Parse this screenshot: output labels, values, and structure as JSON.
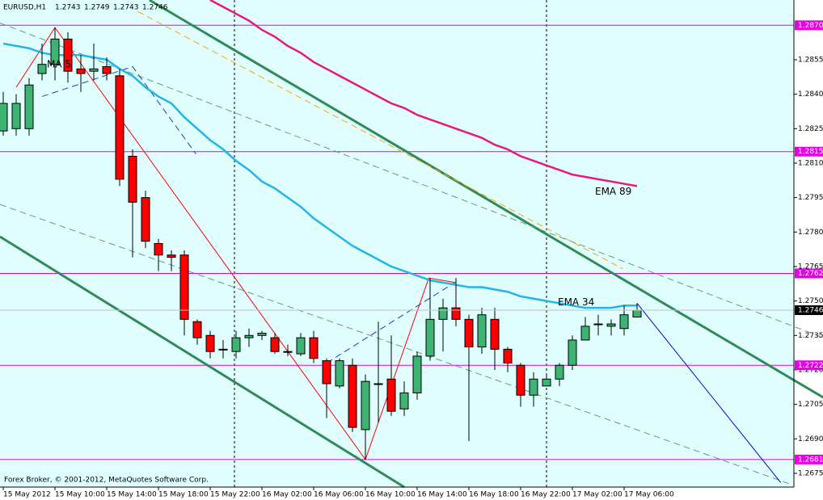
{
  "chart_data": {
    "type": "candlestick",
    "title": "EURUSD,H1",
    "categories": [
      "15 May 2012",
      null,
      null,
      null,
      "15 May 10:00",
      null,
      null,
      null,
      "15 May 14:00",
      null,
      null,
      null,
      "15 May 18:00",
      null,
      null,
      null,
      "15 May 22:00",
      null,
      null,
      null,
      "16 May 02:00",
      null,
      null,
      null,
      "16 May 06:00",
      null,
      null,
      null,
      "16 May 10:00",
      null,
      null,
      null,
      "16 May 14:00",
      null,
      null,
      null,
      "16 May 18:00",
      null,
      null,
      null,
      "16 May 22:00",
      null,
      null,
      null,
      "17 May 02:00",
      null,
      null,
      null,
      "17 May 06:00",
      null
    ],
    "open": [
      1.2824,
      1.2825,
      1.2825,
      1.2849,
      1.2853,
      1.2864,
      1.2851,
      1.285,
      1.2852,
      1.2848,
      1.2813,
      1.2795,
      1.2775,
      1.277,
      1.277,
      1.2741,
      1.2735,
      1.2729,
      1.2728,
      1.2734,
      1.2735,
      1.2734,
      1.2728,
      1.2727,
      1.2734,
      1.2724,
      1.2713,
      1.2722,
      1.2694,
      1.2714,
      1.2716,
      1.2703,
      1.271,
      1.2726,
      1.2742,
      1.2747,
      1.2742,
      1.273,
      1.2742,
      1.2729,
      1.2722,
      1.2709,
      1.2713,
      1.2716,
      1.2722,
      1.2733,
      1.274,
      1.2739,
      1.2738,
      1.2743
    ],
    "high": [
      1.2841,
      1.284,
      1.2847,
      1.2862,
      1.2869,
      1.2867,
      1.2857,
      1.2862,
      1.2856,
      1.2851,
      1.2816,
      1.2798,
      1.2777,
      1.2772,
      1.2772,
      1.2742,
      1.2737,
      1.2733,
      1.2737,
      1.2738,
      1.2737,
      1.2736,
      1.2731,
      1.2736,
      1.2737,
      1.2725,
      1.2725,
      1.2725,
      1.2718,
      1.2741,
      1.2735,
      1.2715,
      1.2728,
      1.276,
      1.2751,
      1.276,
      1.2744,
      1.2747,
      1.2747,
      1.273,
      1.2723,
      1.2719,
      1.2718,
      1.2723,
      1.2735,
      1.2743,
      1.2744,
      1.2742,
      1.2748,
      1.2749
    ],
    "low": [
      1.2822,
      1.2822,
      1.2822,
      1.2846,
      1.2846,
      1.2845,
      1.2841,
      1.2846,
      1.2846,
      1.28,
      1.2769,
      1.2773,
      1.2763,
      1.2763,
      1.2735,
      1.2731,
      1.2725,
      1.2725,
      1.2725,
      1.273,
      1.2733,
      1.2727,
      1.2726,
      1.2726,
      1.2723,
      1.2699,
      1.2712,
      1.2693,
      1.2681,
      1.2697,
      1.27,
      1.27,
      1.2707,
      1.2724,
      1.2728,
      1.2739,
      1.2689,
      1.2727,
      1.272,
      1.2719,
      1.2704,
      1.2704,
      1.2713,
      1.2713,
      1.272,
      1.2733,
      1.2735,
      1.2735,
      1.2735,
      1.2743
    ],
    "close": [
      1.2836,
      1.2836,
      1.2844,
      1.2853,
      1.2864,
      1.285,
      1.2849,
      1.2851,
      1.2849,
      1.2803,
      1.2793,
      1.2776,
      1.277,
      1.2769,
      1.2742,
      1.2734,
      1.2728,
      1.2729,
      1.2734,
      1.2735,
      1.2736,
      1.2728,
      1.2728,
      1.2734,
      1.2725,
      1.2714,
      1.2724,
      1.2695,
      1.2715,
      1.2714,
      1.2702,
      1.271,
      1.2726,
      1.2742,
      1.2747,
      1.2742,
      1.273,
      1.2744,
      1.2729,
      1.2723,
      1.2709,
      1.2716,
      1.2716,
      1.2722,
      1.2733,
      1.2739,
      1.274,
      1.274,
      1.2744,
      1.2746
    ],
    "up_color": "#3cb371",
    "down_color": "#ff0000",
    "series": [
      {
        "name": "EMA 34",
        "color": "#22b5e8",
        "values": [
          1.2862,
          1.2861,
          1.286,
          1.2858,
          1.2857,
          1.2857,
          1.2857,
          1.2856,
          1.2855,
          1.2851,
          1.2848,
          1.2843,
          1.2839,
          1.2836,
          1.283,
          1.2825,
          1.282,
          1.2816,
          1.2811,
          1.2807,
          1.2802,
          1.2799,
          1.2795,
          1.2791,
          1.2786,
          1.2782,
          1.2778,
          1.2774,
          1.2771,
          1.2768,
          1.2765,
          1.2763,
          1.2761,
          1.2759,
          1.2758,
          1.2757,
          1.2756,
          1.2756,
          1.2755,
          1.2754,
          1.2752,
          1.2751,
          1.275,
          1.2749,
          1.2748,
          1.2747,
          1.2747,
          1.2747,
          1.2748,
          1.2748
        ]
      },
      {
        "name": "EMA 89",
        "color": "#e8197d",
        "values": [
          null,
          null,
          null,
          null,
          null,
          null,
          null,
          null,
          null,
          null,
          null,
          null,
          null,
          null,
          null,
          null,
          1.2881,
          1.2878,
          1.2875,
          1.2872,
          1.2868,
          1.2865,
          1.2861,
          1.2858,
          1.2854,
          1.2851,
          1.2848,
          1.2845,
          1.2842,
          1.2839,
          1.2836,
          1.2834,
          1.2831,
          1.2829,
          1.2827,
          1.2825,
          1.2823,
          1.2821,
          1.2818,
          1.2816,
          1.2813,
          1.2811,
          1.2809,
          1.2807,
          1.2805,
          1.2804,
          1.2803,
          1.2802,
          1.2801,
          1.28
        ]
      }
    ],
    "lines": [
      {
        "color": "#2e8b57",
        "width": 3,
        "dash": false,
        "points": [
          [
            11.3,
            1.2881
          ],
          [
            63.4,
            1.2708
          ]
        ]
      },
      {
        "color": "#2e8b57",
        "width": 3,
        "dash": false,
        "points": [
          [
            -0.25,
            1.2778
          ],
          [
            31,
            1.2669
          ]
        ]
      },
      {
        "color": "#5f9f7f",
        "width": 1,
        "dash": true,
        "points": [
          [
            -0.25,
            1.2871
          ],
          [
            63.4,
            1.2734
          ]
        ]
      },
      {
        "color": "#5f9f7f",
        "width": 1,
        "dash": true,
        "points": [
          [
            -0.25,
            1.2792
          ],
          [
            61,
            1.267
          ]
        ]
      },
      {
        "color": "#ffa500",
        "width": 1,
        "dash": true,
        "points": [
          [
            10.4,
            1.2876
          ],
          [
            47.9,
            1.2764
          ]
        ]
      },
      {
        "color": "#1e3cc8",
        "width": 1,
        "dash": true,
        "points": [
          [
            3,
            1.2839
          ],
          [
            10,
            1.2852
          ],
          [
            14.9,
            1.2814
          ]
        ]
      },
      {
        "color": "#1e3cc8",
        "width": 1,
        "dash": true,
        "points": [
          [
            25,
            1.2723
          ],
          [
            34.9,
            1.2758
          ]
        ]
      },
      {
        "color": "#ff0000",
        "width": 1,
        "dash": false,
        "points": [
          [
            1,
            1.2843
          ],
          [
            4,
            1.2869
          ],
          [
            28,
            1.2681
          ],
          [
            32.9,
            1.276
          ],
          [
            35,
            1.2758
          ]
        ]
      },
      {
        "color": "#0000cd",
        "width": 1,
        "dash": false,
        "points": [
          [
            49,
            1.2749
          ],
          [
            60.1,
            1.2671
          ]
        ]
      }
    ],
    "levels": [
      {
        "value": 1.287,
        "label": "1.2870"
      },
      {
        "value": 1.2815,
        "label": "1.2815"
      },
      {
        "value": 1.2762,
        "label": "1.2762"
      },
      {
        "value": 1.2722,
        "label": "1.2722"
      },
      {
        "value": 1.2681,
        "label": "1.2681"
      }
    ],
    "level_color": "#e600e6",
    "current": {
      "value": 1.2746,
      "label": "1.2746"
    },
    "ylim": [
      1.2669,
      1.2881
    ],
    "yticks": [
      {
        "value": 1.2675,
        "label": "1.2675"
      },
      {
        "value": 1.269,
        "label": "1.2690"
      },
      1.2705,
      {
        "value": 1.272,
        "label": "1.2720"
      },
      1.2735,
      {
        "value": 1.275,
        "label": "1.2750"
      },
      1.2765,
      {
        "value": 1.278,
        "label": "1.2780"
      },
      1.2795,
      {
        "value": 1.281,
        "label": "1.2810"
      },
      1.2825,
      {
        "value": 1.284,
        "label": "1.2840"
      },
      1.2855
    ],
    "annotation": "MA 5",
    "footer": "Forex Broker, © 2001-2012, MetaQuotes Software Corp."
  }
}
